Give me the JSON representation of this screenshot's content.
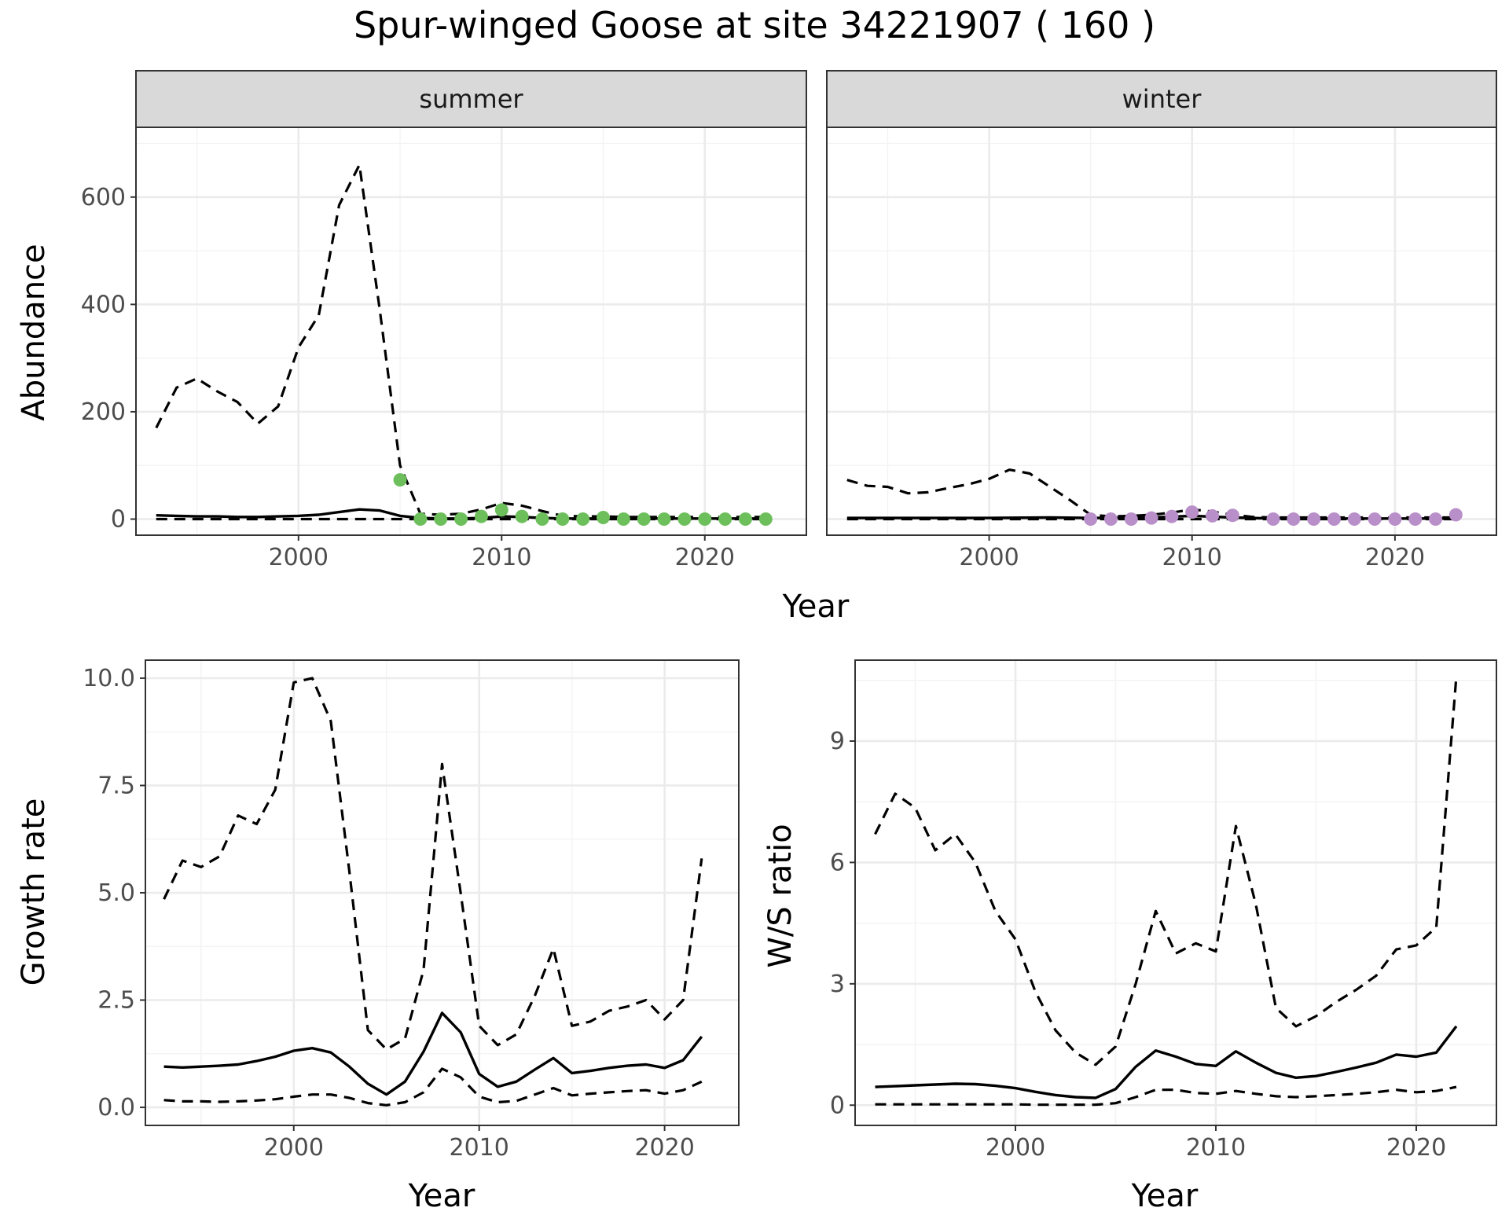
{
  "title": "Spur-winged Goose at site 34221907 ( 160 )",
  "colors": {
    "summer_points": "#6dbf5c",
    "winter_points": "#b98fc9"
  },
  "chart_data": [
    {
      "type": "line",
      "panel": "summer",
      "strip_label": "summer",
      "xlabel": "Year",
      "ylabel": "Abundance",
      "xlim": [
        1992,
        2025
      ],
      "ylim": [
        -30,
        730
      ],
      "xticks": [
        2000,
        2010,
        2020
      ],
      "yticks": [
        0,
        200,
        400,
        600
      ],
      "grid": true,
      "series": [
        {
          "role": "estimate",
          "x": [
            1993,
            1994,
            1995,
            1996,
            1997,
            1998,
            1999,
            2000,
            2001,
            2002,
            2003,
            2004,
            2005,
            2006,
            2007,
            2008,
            2009,
            2010,
            2011,
            2012,
            2013,
            2014,
            2015,
            2016,
            2017,
            2018,
            2019,
            2020,
            2021,
            2022,
            2023
          ],
          "values": [
            7,
            6,
            5,
            5,
            4,
            4,
            5,
            6,
            8,
            13,
            18,
            16,
            6,
            2,
            1,
            1,
            2,
            5,
            4,
            2,
            1,
            1,
            1,
            1,
            1,
            1,
            1,
            1,
            1,
            1,
            1
          ]
        },
        {
          "role": "upper",
          "x": [
            1993,
            1994,
            1995,
            1996,
            1997,
            1998,
            1999,
            2000,
            2001,
            2002,
            2003,
            2004,
            2005,
            2006,
            2007,
            2008,
            2009,
            2010,
            2011,
            2012,
            2013,
            2014,
            2015,
            2016,
            2017,
            2018,
            2019,
            2020,
            2021,
            2022,
            2023
          ],
          "values": [
            170,
            245,
            262,
            238,
            218,
            178,
            210,
            320,
            380,
            585,
            660,
            390,
            100,
            10,
            8,
            10,
            18,
            30,
            25,
            15,
            6,
            5,
            5,
            4,
            4,
            4,
            4,
            4,
            4,
            4,
            4
          ]
        },
        {
          "role": "lower",
          "x": [
            1993,
            2023
          ],
          "values": [
            0,
            0
          ]
        },
        {
          "role": "observed",
          "x": [
            2005,
            2006,
            2007,
            2008,
            2009,
            2010,
            2011,
            2012,
            2013,
            2014,
            2015,
            2016,
            2017,
            2018,
            2019,
            2020,
            2021,
            2022,
            2023
          ],
          "values": [
            73,
            0,
            0,
            0,
            5,
            17,
            5,
            0,
            0,
            0,
            3,
            0,
            0,
            0,
            0,
            0,
            0,
            0,
            0
          ]
        }
      ]
    },
    {
      "type": "line",
      "panel": "winter",
      "strip_label": "winter",
      "xlabel": "Year",
      "ylabel": "Abundance",
      "xlim": [
        1992,
        2025
      ],
      "ylim": [
        -30,
        730
      ],
      "xticks": [
        2000,
        2010,
        2020
      ],
      "yticks": [
        0,
        200,
        400,
        600
      ],
      "grid": true,
      "series": [
        {
          "role": "estimate",
          "x": [
            1993,
            1995,
            2000,
            2003,
            2005,
            2008,
            2010,
            2012,
            2014,
            2016,
            2018,
            2020,
            2022,
            2023
          ],
          "values": [
            2,
            2,
            2,
            3,
            2,
            3,
            6,
            3,
            1,
            1,
            1,
            1,
            1,
            1
          ]
        },
        {
          "role": "upper",
          "x": [
            1993,
            1994,
            1995,
            1996,
            1997,
            1998,
            1999,
            2000,
            2001,
            2002,
            2003,
            2004,
            2005,
            2006,
            2007,
            2008,
            2009,
            2010,
            2011,
            2012,
            2013,
            2014,
            2015,
            2016,
            2017,
            2018,
            2019,
            2020,
            2021,
            2022,
            2023
          ],
          "values": [
            73,
            62,
            60,
            48,
            50,
            58,
            65,
            75,
            92,
            85,
            60,
            35,
            8,
            5,
            6,
            8,
            12,
            18,
            14,
            8,
            4,
            3,
            3,
            3,
            3,
            3,
            3,
            3,
            3,
            3,
            3
          ]
        },
        {
          "role": "lower",
          "x": [
            1993,
            2023
          ],
          "values": [
            0,
            0
          ]
        },
        {
          "role": "observed",
          "x": [
            2005,
            2006,
            2007,
            2008,
            2009,
            2010,
            2011,
            2012,
            2014,
            2015,
            2016,
            2017,
            2018,
            2019,
            2020,
            2021,
            2022,
            2023
          ],
          "values": [
            0,
            0,
            0,
            2,
            5,
            13,
            6,
            7,
            0,
            0,
            0,
            0,
            0,
            0,
            0,
            0,
            0,
            8
          ]
        }
      ]
    },
    {
      "type": "line",
      "panel": "growth",
      "xlabel": "Year",
      "ylabel": "Growth rate",
      "xlim": [
        1992,
        2024
      ],
      "ylim": [
        -0.42,
        10.42
      ],
      "xticks": [
        2000,
        2010,
        2020
      ],
      "yticks": [
        0.0,
        2.5,
        5.0,
        7.5,
        10.0
      ],
      "ytick_labels": [
        "0.0",
        "2.5",
        "5.0",
        "7.5",
        "10.0"
      ],
      "grid": true,
      "series": [
        {
          "role": "estimate",
          "x": [
            1993,
            1994,
            1995,
            1996,
            1997,
            1998,
            1999,
            2000,
            2001,
            2002,
            2003,
            2004,
            2005,
            2006,
            2007,
            2008,
            2009,
            2010,
            2011,
            2012,
            2013,
            2014,
            2015,
            2016,
            2017,
            2018,
            2019,
            2020,
            2021,
            2022
          ],
          "values": [
            0.95,
            0.93,
            0.95,
            0.97,
            1.0,
            1.08,
            1.18,
            1.32,
            1.38,
            1.28,
            0.95,
            0.55,
            0.3,
            0.6,
            1.3,
            2.2,
            1.75,
            0.78,
            0.48,
            0.6,
            0.88,
            1.15,
            0.8,
            0.85,
            0.92,
            0.97,
            1.0,
            0.92,
            1.1,
            1.65
          ]
        },
        {
          "role": "upper",
          "x": [
            1993,
            1994,
            1995,
            1996,
            1997,
            1998,
            1999,
            2000,
            2001,
            2002,
            2003,
            2004,
            2005,
            2006,
            2007,
            2008,
            2009,
            2010,
            2011,
            2012,
            2013,
            2014,
            2015,
            2016,
            2017,
            2018,
            2019,
            2020,
            2021,
            2022
          ],
          "values": [
            4.85,
            5.75,
            5.6,
            5.85,
            6.8,
            6.6,
            7.4,
            9.9,
            10.0,
            9.0,
            5.5,
            1.8,
            1.35,
            1.6,
            3.2,
            8.0,
            5.0,
            1.9,
            1.45,
            1.7,
            2.6,
            3.7,
            1.9,
            2.0,
            2.25,
            2.35,
            2.5,
            2.05,
            2.5,
            5.8
          ]
        },
        {
          "role": "lower",
          "x": [
            1993,
            1994,
            1995,
            1996,
            1997,
            1998,
            1999,
            2000,
            2001,
            2002,
            2003,
            2004,
            2005,
            2006,
            2007,
            2008,
            2009,
            2010,
            2011,
            2012,
            2013,
            2014,
            2015,
            2016,
            2017,
            2018,
            2019,
            2020,
            2021,
            2022
          ],
          "values": [
            0.17,
            0.14,
            0.14,
            0.13,
            0.14,
            0.16,
            0.19,
            0.25,
            0.3,
            0.3,
            0.22,
            0.1,
            0.05,
            0.12,
            0.35,
            0.9,
            0.7,
            0.25,
            0.12,
            0.15,
            0.3,
            0.45,
            0.28,
            0.32,
            0.35,
            0.38,
            0.4,
            0.32,
            0.4,
            0.6
          ]
        }
      ]
    },
    {
      "type": "line",
      "panel": "ratio",
      "xlabel": "Year",
      "ylabel": "W/S ratio",
      "xlim": [
        1992,
        2024
      ],
      "ylim": [
        -0.5,
        11.0
      ],
      "xticks": [
        2000,
        2010,
        2020
      ],
      "yticks": [
        0,
        3,
        6,
        9
      ],
      "grid": true,
      "series": [
        {
          "role": "estimate",
          "x": [
            1993,
            1994,
            1995,
            1996,
            1997,
            1998,
            1999,
            2000,
            2001,
            2002,
            2003,
            2004,
            2005,
            2006,
            2007,
            2008,
            2009,
            2010,
            2011,
            2012,
            2013,
            2014,
            2015,
            2016,
            2017,
            2018,
            2019,
            2020,
            2021,
            2022
          ],
          "values": [
            0.45,
            0.47,
            0.49,
            0.51,
            0.53,
            0.52,
            0.48,
            0.42,
            0.33,
            0.25,
            0.2,
            0.18,
            0.4,
            0.95,
            1.35,
            1.2,
            1.02,
            0.97,
            1.33,
            1.05,
            0.8,
            0.68,
            0.72,
            0.82,
            0.93,
            1.05,
            1.25,
            1.2,
            1.3,
            1.95
          ]
        },
        {
          "role": "upper",
          "x": [
            1993,
            1994,
            1995,
            1996,
            1997,
            1998,
            1999,
            2000,
            2001,
            2002,
            2003,
            2004,
            2005,
            2006,
            2007,
            2008,
            2009,
            2010,
            2011,
            2012,
            2013,
            2014,
            2015,
            2016,
            2017,
            2018,
            2019,
            2020,
            2021,
            2022
          ],
          "values": [
            6.7,
            7.7,
            7.35,
            6.3,
            6.7,
            6.0,
            4.8,
            4.1,
            2.8,
            1.85,
            1.3,
            1.0,
            1.45,
            3.0,
            4.8,
            3.75,
            4.0,
            3.8,
            6.9,
            4.95,
            2.4,
            1.95,
            2.2,
            2.55,
            2.85,
            3.2,
            3.85,
            3.95,
            4.4,
            10.6
          ]
        },
        {
          "role": "lower",
          "x": [
            1993,
            1994,
            1995,
            1996,
            1997,
            1998,
            1999,
            2000,
            2001,
            2002,
            2003,
            2004,
            2005,
            2006,
            2007,
            2008,
            2009,
            2010,
            2011,
            2012,
            2013,
            2014,
            2015,
            2016,
            2017,
            2018,
            2019,
            2020,
            2021,
            2022
          ],
          "values": [
            0.02,
            0.02,
            0.02,
            0.02,
            0.02,
            0.02,
            0.02,
            0.02,
            0.01,
            0.01,
            0.01,
            0.01,
            0.05,
            0.2,
            0.38,
            0.38,
            0.3,
            0.28,
            0.35,
            0.28,
            0.22,
            0.2,
            0.22,
            0.25,
            0.28,
            0.32,
            0.38,
            0.32,
            0.35,
            0.45
          ]
        }
      ]
    }
  ]
}
